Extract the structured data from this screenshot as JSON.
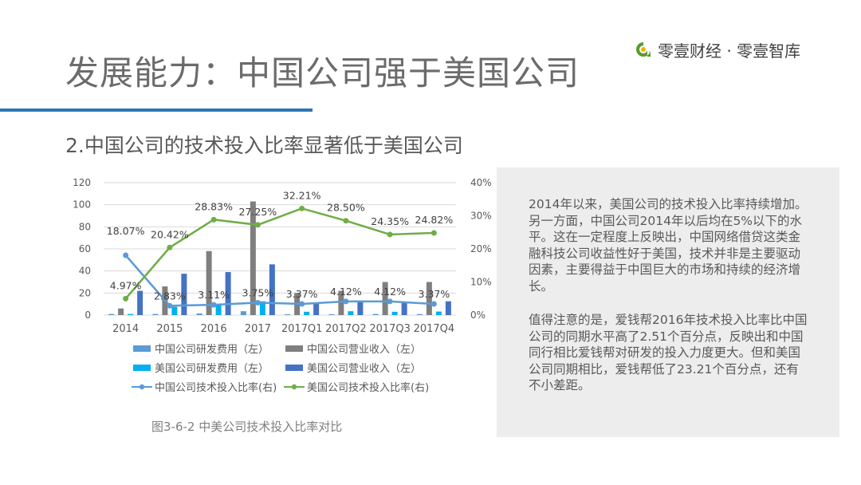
{
  "header": {
    "title": "发展能力：中国公司强于美国公司",
    "logo_text": "零壹财经 · 零壹智库",
    "brand_color": "#2e75b6",
    "logo_color": "#5a9a2a"
  },
  "subtitle": "2.中国公司的技术投入比率显著低于美国公司",
  "chart_data": {
    "type": "bar",
    "categories": [
      "2014",
      "2015",
      "2016",
      "2017",
      "2017Q1",
      "2017Q2",
      "2017Q3",
      "2017Q4"
    ],
    "y_left": {
      "ylim": [
        0,
        120
      ],
      "ticks": [
        "0",
        "20",
        "40",
        "60",
        "80",
        "100",
        "120"
      ]
    },
    "y_right": {
      "ylim": [
        0,
        40
      ],
      "ticks": [
        "0%",
        "10%",
        "20%",
        "30%",
        "40%"
      ]
    },
    "series": [
      {
        "name": "中国公司研发费用（左）",
        "type": "bar",
        "axis": "left",
        "color": "#5b9bd5",
        "values": [
          1,
          1,
          1.5,
          3.5,
          0.7,
          0.8,
          1,
          0.9
        ]
      },
      {
        "name": "中国公司营业收入（左）",
        "type": "bar",
        "axis": "left",
        "color": "#7f7f7f",
        "values": [
          6,
          26,
          58,
          103,
          20,
          22,
          30,
          30
        ]
      },
      {
        "name": "美国公司研发费用（左）",
        "type": "bar",
        "axis": "left",
        "color": "#00b0f0",
        "values": [
          1,
          7.5,
          10,
          12.5,
          3,
          3.5,
          3,
          3.2
        ]
      },
      {
        "name": "美国公司营业收入（左）",
        "type": "bar",
        "axis": "left",
        "color": "#4472c4",
        "values": [
          22,
          37.5,
          39,
          46,
          11,
          12,
          11.5,
          12.5
        ]
      },
      {
        "name": "中国公司技术投入比率(右)",
        "type": "line",
        "axis": "right",
        "color": "#5b9bd5",
        "values": [
          18.07,
          2.83,
          3.11,
          3.75,
          3.37,
          4.12,
          4.12,
          3.37
        ],
        "labels": [
          "18.07%",
          "2.83%",
          "3.11%",
          "3.75%",
          "3.37%",
          "4.12%",
          "4.12%",
          "3.37%"
        ]
      },
      {
        "name": "美国公司技术投入比率(右)",
        "type": "line",
        "axis": "right",
        "color": "#70ad47",
        "values": [
          4.97,
          20.42,
          28.83,
          27.25,
          32.21,
          28.5,
          24.35,
          24.82
        ],
        "labels": [
          "4.97%",
          "20.42%",
          "28.83%",
          "27.25%",
          "32.21%",
          "28.50%",
          "24.35%",
          "24.82%"
        ]
      }
    ],
    "legend_position": "bottom",
    "grid": true,
    "caption": "图3-6-2 中美公司技术投入比率对比"
  },
  "notes": {
    "paragraph1": "2014年以来，美国公司的技术投入比率持续增加。另一方面，中国公司2014年以后均在5%以下的水平。这在一定程度上反映出，中国网络借贷这类金融科技公司收益性好于美国，技术并非是主要驱动因素，主要得益于中国巨大的市场和持续的经济增长。",
    "paragraph2": "值得注意的是，爱钱帮2016年技术投入比率比中国公司的同期水平高了2.51个百分点，反映出和中国同行相比爱钱帮对研发的投入力度更大。但和美国公司同期相比，爱钱帮低了23.21个百分点，还有不小差距。"
  }
}
